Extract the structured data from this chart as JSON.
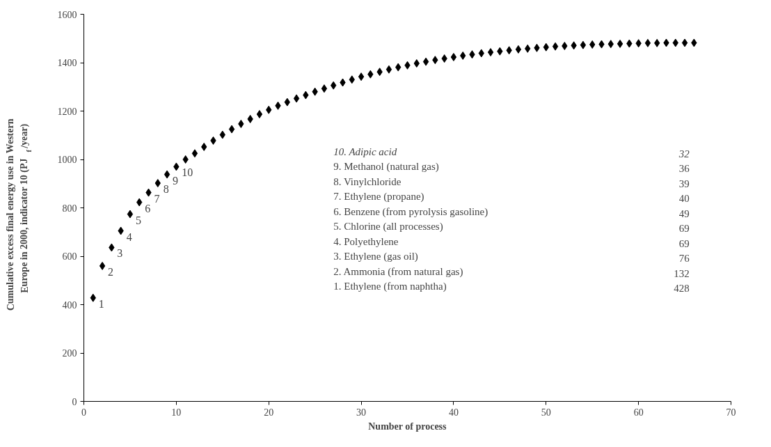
{
  "chart_data": {
    "type": "scatter",
    "xlabel": "Number of process",
    "ylabel": "Cumulative excess final energy use in Western Europe in 2000, indicator 10 (PJ$_{f}$/year)",
    "x": [
      1,
      2,
      3,
      4,
      5,
      6,
      7,
      8,
      9,
      10,
      11,
      12,
      13,
      14,
      15,
      16,
      17,
      18,
      19,
      20,
      21,
      22,
      23,
      24,
      25,
      26,
      27,
      28,
      29,
      30,
      31,
      32,
      33,
      34,
      35,
      36,
      37,
      38,
      39,
      40,
      41,
      42,
      43,
      44,
      45,
      46,
      47,
      48,
      49,
      50,
      51,
      52,
      53,
      54,
      55,
      56,
      57,
      58,
      59,
      60,
      61,
      62,
      63,
      64,
      65,
      66
    ],
    "series": [
      {
        "color": "#000000",
        "values": [
          428,
          560,
          636,
          705,
          774,
          823,
          863,
          902,
          938,
          970,
          1000,
          1025,
          1052,
          1078,
          1102,
          1125,
          1147,
          1167,
          1187,
          1205,
          1222,
          1237,
          1252,
          1266,
          1280,
          1293,
          1306,
          1318,
          1330,
          1342,
          1352,
          1362,
          1372,
          1381,
          1389,
          1397,
          1404,
          1411,
          1417,
          1423,
          1429,
          1434,
          1439,
          1443,
          1447,
          1451,
          1455,
          1458,
          1461,
          1464,
          1467,
          1469,
          1471,
          1473,
          1475,
          1476,
          1477,
          1478,
          1479,
          1480,
          1481,
          1481,
          1482,
          1482,
          1482,
          1482
        ]
      }
    ],
    "marker": "diamond",
    "xlim": [
      0,
      70
    ],
    "xticks": [
      0,
      10,
      20,
      30,
      40,
      50,
      60,
      70
    ],
    "ylim": [
      0,
      1600
    ],
    "yticks": [
      0,
      200,
      400,
      600,
      800,
      1000,
      1200,
      1400,
      1600
    ],
    "grid": false,
    "annotations": [
      {
        "text": "1",
        "x": 1,
        "y": 428
      },
      {
        "text": "2",
        "x": 2,
        "y": 560
      },
      {
        "text": "3",
        "x": 3,
        "y": 636
      },
      {
        "text": "4",
        "x": 4,
        "y": 705
      },
      {
        "text": "5",
        "x": 5,
        "y": 774
      },
      {
        "text": "6",
        "x": 6,
        "y": 823
      },
      {
        "text": "7",
        "x": 7,
        "y": 863
      },
      {
        "text": "8",
        "x": 8,
        "y": 902
      },
      {
        "text": "9",
        "x": 9,
        "y": 938
      },
      {
        "text": "10",
        "x": 10,
        "y": 970
      },
      "10. Adipic acid",
      "32",
      "9. Methanol (natural gas)",
      "36",
      "8. Vinylchloride",
      "39",
      "7. Ethylene (propane)",
      "40",
      "6. Benzene (from pyrolysis gasoline)",
      "49",
      "5. Chlorine (all processes)",
      "69",
      "4. Polyethylene",
      "69",
      "3. Ethylene (gas oil)",
      "76",
      "2. Ammonia (from natural gas)",
      "132",
      "1. Ethylene (from naphtha)",
      "428"
    ]
  }
}
